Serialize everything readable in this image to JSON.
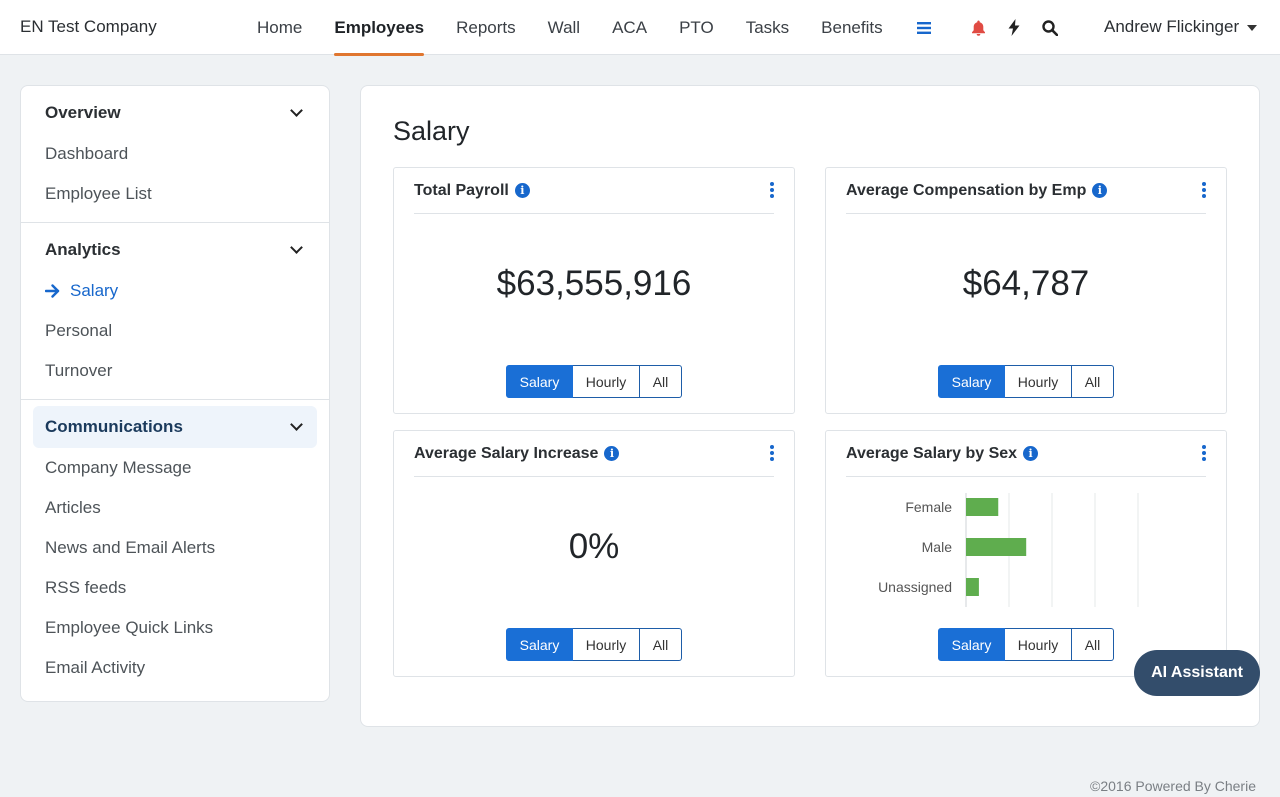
{
  "brand": "EN Test Company",
  "nav": [
    "Home",
    "Employees",
    "Reports",
    "Wall",
    "ACA",
    "PTO",
    "Tasks",
    "Benefits"
  ],
  "user": "Andrew Flickinger",
  "icons": {
    "menu": "hamburger-icon",
    "notifications": "bell-icon",
    "activity": "bolt-icon",
    "search": "search-icon"
  },
  "sidebar": {
    "overview": {
      "title": "Overview",
      "items": [
        "Dashboard",
        "Employee List"
      ]
    },
    "analytics": {
      "title": "Analytics",
      "items": [
        "Salary",
        "Personal",
        "Turnover"
      ]
    },
    "communications": {
      "title": "Communications",
      "items": [
        "Company Message",
        "Articles",
        "News and Email Alerts",
        "RSS feeds",
        "Employee Quick Links",
        "Email Activity"
      ]
    }
  },
  "page": {
    "title": "Salary"
  },
  "cards": {
    "total_payroll": {
      "title": "Total Payroll",
      "value": "$63,555,916"
    },
    "avg_comp": {
      "title": "Average Compensation by Emp",
      "value": "$64,787"
    },
    "avg_increase": {
      "title": "Average Salary Increase",
      "value": "0%"
    },
    "avg_by_sex": {
      "title": "Average Salary by Sex"
    }
  },
  "toggle": {
    "salary": "Salary",
    "hourly": "Hourly",
    "all": "All"
  },
  "chart_data": {
    "type": "bar",
    "orientation": "horizontal",
    "title": "Average Salary by Sex",
    "categories": [
      "Female",
      "Male",
      "Unassigned"
    ],
    "values": [
      0.75,
      1.4,
      0.3
    ],
    "xlim": [
      0,
      4
    ],
    "grid": true,
    "bar_color": "#5fad4e"
  },
  "ai_assistant": "AI Assistant",
  "footer": "©2016 Powered By Cherie",
  "colors": {
    "accent": "#1a6fd6",
    "nav_underline": "#e0762f",
    "ai_button": "#334d6b"
  }
}
